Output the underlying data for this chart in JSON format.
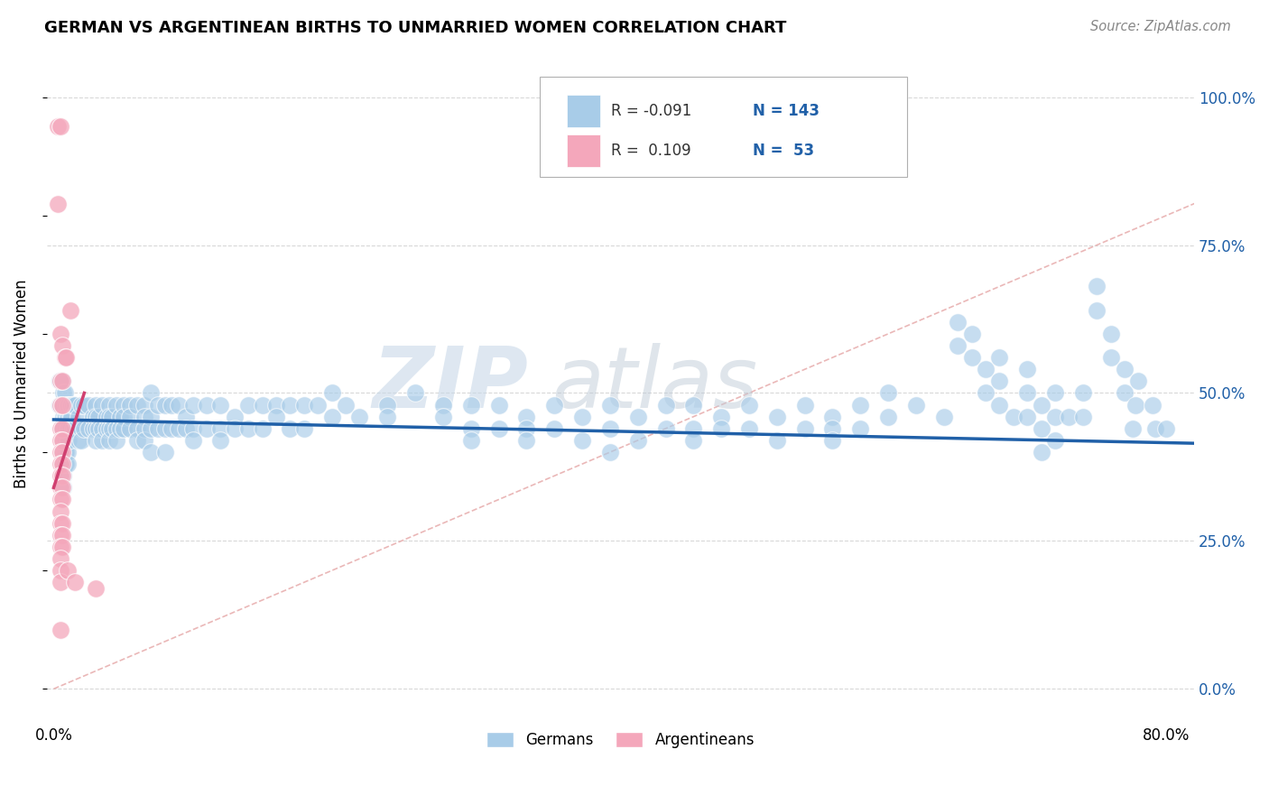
{
  "title": "GERMAN VS ARGENTINEAN BIRTHS TO UNMARRIED WOMEN CORRELATION CHART",
  "source": "Source: ZipAtlas.com",
  "ylabel": "Births to Unmarried Women",
  "ytick_labels": [
    "0.0%",
    "25.0%",
    "50.0%",
    "75.0%",
    "100.0%"
  ],
  "ytick_values": [
    0.0,
    0.25,
    0.5,
    0.75,
    1.0
  ],
  "xlim": [
    -0.005,
    0.82
  ],
  "ylim": [
    -0.05,
    1.08
  ],
  "plot_ylim": [
    0.0,
    1.0
  ],
  "watermark_zip": "ZIP",
  "watermark_atlas": "atlas",
  "blue_color": "#a8cce8",
  "pink_color": "#f4a7bb",
  "blue_line_color": "#2060a8",
  "pink_line_color": "#d04070",
  "diag_line_color": "#e8b0b0",
  "grid_color": "#d8d8d8",
  "blue_scatter": [
    [
      0.004,
      0.52
    ],
    [
      0.004,
      0.48
    ],
    [
      0.006,
      0.52
    ],
    [
      0.006,
      0.48
    ],
    [
      0.006,
      0.44
    ],
    [
      0.006,
      0.4
    ],
    [
      0.007,
      0.5
    ],
    [
      0.007,
      0.46
    ],
    [
      0.007,
      0.42
    ],
    [
      0.007,
      0.38
    ],
    [
      0.007,
      0.36
    ],
    [
      0.007,
      0.34
    ],
    [
      0.008,
      0.5
    ],
    [
      0.008,
      0.46
    ],
    [
      0.008,
      0.44
    ],
    [
      0.008,
      0.42
    ],
    [
      0.008,
      0.4
    ],
    [
      0.008,
      0.38
    ],
    [
      0.009,
      0.48
    ],
    [
      0.009,
      0.46
    ],
    [
      0.009,
      0.44
    ],
    [
      0.009,
      0.42
    ],
    [
      0.009,
      0.4
    ],
    [
      0.009,
      0.38
    ],
    [
      0.01,
      0.48
    ],
    [
      0.01,
      0.46
    ],
    [
      0.01,
      0.44
    ],
    [
      0.01,
      0.42
    ],
    [
      0.01,
      0.4
    ],
    [
      0.01,
      0.38
    ],
    [
      0.011,
      0.48
    ],
    [
      0.011,
      0.46
    ],
    [
      0.011,
      0.44
    ],
    [
      0.011,
      0.42
    ],
    [
      0.012,
      0.48
    ],
    [
      0.012,
      0.46
    ],
    [
      0.012,
      0.44
    ],
    [
      0.013,
      0.48
    ],
    [
      0.013,
      0.46
    ],
    [
      0.014,
      0.48
    ],
    [
      0.014,
      0.44
    ],
    [
      0.015,
      0.48
    ],
    [
      0.015,
      0.44
    ],
    [
      0.018,
      0.46
    ],
    [
      0.018,
      0.42
    ],
    [
      0.02,
      0.48
    ],
    [
      0.02,
      0.44
    ],
    [
      0.02,
      0.42
    ],
    [
      0.022,
      0.48
    ],
    [
      0.022,
      0.44
    ],
    [
      0.025,
      0.48
    ],
    [
      0.025,
      0.44
    ],
    [
      0.028,
      0.46
    ],
    [
      0.028,
      0.44
    ],
    [
      0.03,
      0.48
    ],
    [
      0.03,
      0.46
    ],
    [
      0.03,
      0.44
    ],
    [
      0.03,
      0.42
    ],
    [
      0.032,
      0.46
    ],
    [
      0.032,
      0.44
    ],
    [
      0.035,
      0.48
    ],
    [
      0.035,
      0.44
    ],
    [
      0.035,
      0.42
    ],
    [
      0.038,
      0.46
    ],
    [
      0.038,
      0.44
    ],
    [
      0.04,
      0.48
    ],
    [
      0.04,
      0.46
    ],
    [
      0.04,
      0.44
    ],
    [
      0.04,
      0.42
    ],
    [
      0.042,
      0.46
    ],
    [
      0.042,
      0.44
    ],
    [
      0.045,
      0.48
    ],
    [
      0.045,
      0.44
    ],
    [
      0.045,
      0.42
    ],
    [
      0.048,
      0.46
    ],
    [
      0.048,
      0.44
    ],
    [
      0.05,
      0.48
    ],
    [
      0.05,
      0.46
    ],
    [
      0.05,
      0.44
    ],
    [
      0.055,
      0.48
    ],
    [
      0.055,
      0.46
    ],
    [
      0.055,
      0.44
    ],
    [
      0.06,
      0.48
    ],
    [
      0.06,
      0.44
    ],
    [
      0.06,
      0.42
    ],
    [
      0.065,
      0.48
    ],
    [
      0.065,
      0.46
    ],
    [
      0.065,
      0.44
    ],
    [
      0.065,
      0.42
    ],
    [
      0.07,
      0.5
    ],
    [
      0.07,
      0.46
    ],
    [
      0.07,
      0.44
    ],
    [
      0.07,
      0.4
    ],
    [
      0.075,
      0.48
    ],
    [
      0.075,
      0.44
    ],
    [
      0.08,
      0.48
    ],
    [
      0.08,
      0.44
    ],
    [
      0.08,
      0.4
    ],
    [
      0.085,
      0.48
    ],
    [
      0.085,
      0.44
    ],
    [
      0.09,
      0.48
    ],
    [
      0.09,
      0.44
    ],
    [
      0.095,
      0.46
    ],
    [
      0.095,
      0.44
    ],
    [
      0.1,
      0.48
    ],
    [
      0.1,
      0.44
    ],
    [
      0.1,
      0.42
    ],
    [
      0.11,
      0.48
    ],
    [
      0.11,
      0.44
    ],
    [
      0.12,
      0.48
    ],
    [
      0.12,
      0.44
    ],
    [
      0.12,
      0.42
    ],
    [
      0.13,
      0.46
    ],
    [
      0.13,
      0.44
    ],
    [
      0.14,
      0.48
    ],
    [
      0.14,
      0.44
    ],
    [
      0.15,
      0.48
    ],
    [
      0.15,
      0.44
    ],
    [
      0.16,
      0.48
    ],
    [
      0.16,
      0.46
    ],
    [
      0.17,
      0.48
    ],
    [
      0.17,
      0.44
    ],
    [
      0.18,
      0.48
    ],
    [
      0.18,
      0.44
    ],
    [
      0.19,
      0.48
    ],
    [
      0.2,
      0.5
    ],
    [
      0.2,
      0.46
    ],
    [
      0.21,
      0.48
    ],
    [
      0.22,
      0.46
    ],
    [
      0.24,
      0.48
    ],
    [
      0.24,
      0.46
    ],
    [
      0.26,
      0.5
    ],
    [
      0.28,
      0.48
    ],
    [
      0.28,
      0.46
    ],
    [
      0.3,
      0.48
    ],
    [
      0.3,
      0.44
    ],
    [
      0.3,
      0.42
    ],
    [
      0.32,
      0.48
    ],
    [
      0.32,
      0.44
    ],
    [
      0.34,
      0.46
    ],
    [
      0.34,
      0.44
    ],
    [
      0.34,
      0.42
    ],
    [
      0.36,
      0.48
    ],
    [
      0.36,
      0.44
    ],
    [
      0.38,
      0.46
    ],
    [
      0.38,
      0.42
    ],
    [
      0.4,
      0.48
    ],
    [
      0.4,
      0.44
    ],
    [
      0.4,
      0.4
    ],
    [
      0.42,
      0.46
    ],
    [
      0.42,
      0.42
    ],
    [
      0.44,
      0.48
    ],
    [
      0.44,
      0.44
    ],
    [
      0.46,
      0.48
    ],
    [
      0.46,
      0.44
    ],
    [
      0.46,
      0.42
    ],
    [
      0.48,
      0.46
    ],
    [
      0.48,
      0.44
    ],
    [
      0.5,
      0.48
    ],
    [
      0.5,
      0.44
    ],
    [
      0.52,
      0.46
    ],
    [
      0.52,
      0.42
    ],
    [
      0.54,
      0.48
    ],
    [
      0.54,
      0.44
    ],
    [
      0.56,
      0.46
    ],
    [
      0.56,
      0.44
    ],
    [
      0.56,
      0.42
    ],
    [
      0.58,
      0.48
    ],
    [
      0.58,
      0.44
    ],
    [
      0.6,
      0.5
    ],
    [
      0.6,
      0.46
    ],
    [
      0.62,
      0.48
    ],
    [
      0.64,
      0.46
    ],
    [
      0.65,
      0.62
    ],
    [
      0.65,
      0.58
    ],
    [
      0.66,
      0.6
    ],
    [
      0.66,
      0.56
    ],
    [
      0.67,
      0.54
    ],
    [
      0.67,
      0.5
    ],
    [
      0.68,
      0.56
    ],
    [
      0.68,
      0.52
    ],
    [
      0.68,
      0.48
    ],
    [
      0.69,
      0.46
    ],
    [
      0.7,
      0.54
    ],
    [
      0.7,
      0.5
    ],
    [
      0.7,
      0.46
    ],
    [
      0.71,
      0.48
    ],
    [
      0.71,
      0.44
    ],
    [
      0.71,
      0.4
    ],
    [
      0.72,
      0.5
    ],
    [
      0.72,
      0.46
    ],
    [
      0.72,
      0.42
    ],
    [
      0.73,
      0.46
    ],
    [
      0.74,
      0.5
    ],
    [
      0.74,
      0.46
    ],
    [
      0.75,
      0.68
    ],
    [
      0.75,
      0.64
    ],
    [
      0.76,
      0.6
    ],
    [
      0.76,
      0.56
    ],
    [
      0.77,
      0.54
    ],
    [
      0.77,
      0.5
    ],
    [
      0.78,
      0.52
    ],
    [
      0.778,
      0.48
    ],
    [
      0.776,
      0.44
    ],
    [
      0.79,
      0.48
    ],
    [
      0.792,
      0.44
    ],
    [
      0.8,
      0.44
    ]
  ],
  "pink_scatter": [
    [
      0.003,
      0.95
    ],
    [
      0.005,
      0.95
    ],
    [
      0.003,
      0.82
    ],
    [
      0.005,
      0.6
    ],
    [
      0.005,
      0.52
    ],
    [
      0.006,
      0.52
    ],
    [
      0.005,
      0.48
    ],
    [
      0.006,
      0.48
    ],
    [
      0.005,
      0.44
    ],
    [
      0.006,
      0.44
    ],
    [
      0.005,
      0.42
    ],
    [
      0.006,
      0.42
    ],
    [
      0.005,
      0.4
    ],
    [
      0.006,
      0.4
    ],
    [
      0.005,
      0.38
    ],
    [
      0.006,
      0.38
    ],
    [
      0.005,
      0.36
    ],
    [
      0.006,
      0.36
    ],
    [
      0.005,
      0.34
    ],
    [
      0.006,
      0.34
    ],
    [
      0.005,
      0.32
    ],
    [
      0.006,
      0.32
    ],
    [
      0.005,
      0.3
    ],
    [
      0.005,
      0.28
    ],
    [
      0.006,
      0.28
    ],
    [
      0.005,
      0.26
    ],
    [
      0.006,
      0.26
    ],
    [
      0.005,
      0.24
    ],
    [
      0.006,
      0.24
    ],
    [
      0.005,
      0.22
    ],
    [
      0.005,
      0.2
    ],
    [
      0.005,
      0.18
    ],
    [
      0.005,
      0.1
    ],
    [
      0.006,
      0.58
    ],
    [
      0.008,
      0.56
    ],
    [
      0.009,
      0.56
    ],
    [
      0.01,
      0.2
    ],
    [
      0.012,
      0.64
    ],
    [
      0.015,
      0.18
    ],
    [
      0.03,
      0.17
    ]
  ],
  "blue_trendline_x": [
    0.0,
    0.82
  ],
  "blue_trendline_y": [
    0.455,
    0.415
  ],
  "pink_trendline_x": [
    0.0,
    0.022
  ],
  "pink_trendline_y": [
    0.34,
    0.5
  ]
}
